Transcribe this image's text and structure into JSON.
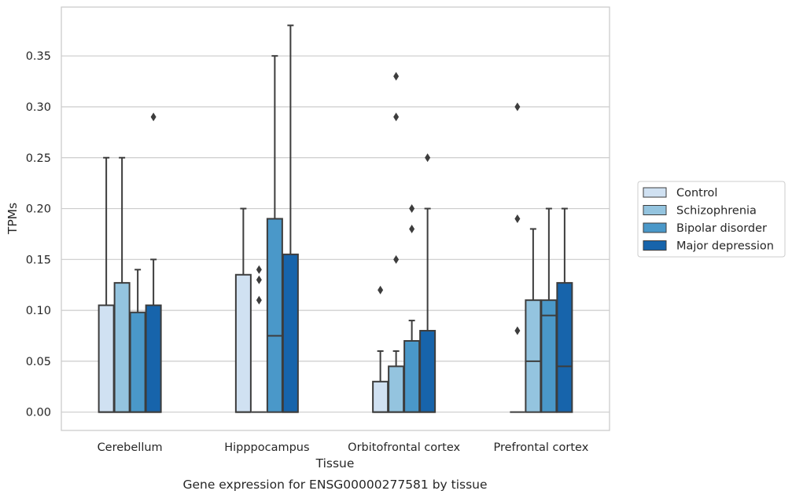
{
  "chart_data": {
    "type": "box",
    "xlabel": "Tissue",
    "ylabel": "TPMs",
    "caption": "Gene expression for ENSG00000277581 by tissue",
    "categories": [
      "Cerebellum",
      "Hipppocampus",
      "Orbitofrontal cortex",
      "Prefrontal cortex"
    ],
    "ylim": [
      -0.018,
      0.398
    ],
    "yticks": [
      "0.00",
      "0.05",
      "0.10",
      "0.15",
      "0.20",
      "0.25",
      "0.30",
      "0.35"
    ],
    "grid": true,
    "legend_position": "right",
    "series": [
      {
        "name": "Control",
        "color": "#d0e1f2",
        "boxes": [
          {
            "min": 0,
            "q1": 0,
            "median": 0,
            "q3": 0.105,
            "max": 0.25,
            "outliers": []
          },
          {
            "min": 0,
            "q1": 0,
            "median": 0,
            "q3": 0.135,
            "max": 0.2,
            "outliers": []
          },
          {
            "min": 0,
            "q1": 0,
            "median": 0,
            "q3": 0.03,
            "max": 0.06,
            "outliers": [
              0.12
            ]
          },
          {
            "min": 0,
            "q1": 0,
            "median": 0,
            "q3": 0,
            "max": 0,
            "outliers": [
              0.08,
              0.19,
              0.3
            ]
          }
        ]
      },
      {
        "name": "Schizophrenia",
        "color": "#94c4df",
        "boxes": [
          {
            "min": 0,
            "q1": 0,
            "median": 0,
            "q3": 0.127,
            "max": 0.25,
            "outliers": []
          },
          {
            "min": 0,
            "q1": 0,
            "median": 0,
            "q3": 0,
            "max": 0,
            "outliers": [
              0.11,
              0.13,
              0.14
            ]
          },
          {
            "min": 0,
            "q1": 0,
            "median": 0,
            "q3": 0.045,
            "max": 0.06,
            "outliers": [
              0.15,
              0.29,
              0.33
            ]
          },
          {
            "min": 0,
            "q1": 0,
            "median": 0.05,
            "q3": 0.11,
            "max": 0.18,
            "outliers": []
          }
        ]
      },
      {
        "name": "Bipolar disorder",
        "color": "#4a98c9",
        "boxes": [
          {
            "min": 0,
            "q1": 0,
            "median": 0,
            "q3": 0.098,
            "max": 0.14,
            "outliers": []
          },
          {
            "min": 0,
            "q1": 0,
            "median": 0.075,
            "q3": 0.19,
            "max": 0.35,
            "outliers": []
          },
          {
            "min": 0,
            "q1": 0,
            "median": 0,
            "q3": 0.07,
            "max": 0.09,
            "outliers": [
              0.18,
              0.2
            ]
          },
          {
            "min": 0,
            "q1": 0,
            "median": 0.095,
            "q3": 0.11,
            "max": 0.2,
            "outliers": []
          }
        ]
      },
      {
        "name": "Major depression",
        "color": "#1764ab",
        "boxes": [
          {
            "min": 0,
            "q1": 0,
            "median": 0,
            "q3": 0.105,
            "max": 0.15,
            "outliers": [
              0.29
            ]
          },
          {
            "min": 0,
            "q1": 0,
            "median": 0,
            "q3": 0.155,
            "max": 0.38,
            "outliers": []
          },
          {
            "min": 0,
            "q1": 0,
            "median": 0,
            "q3": 0.08,
            "max": 0.2,
            "outliers": [
              0.25
            ]
          },
          {
            "min": 0,
            "q1": 0,
            "median": 0.045,
            "q3": 0.127,
            "max": 0.2,
            "outliers": []
          }
        ]
      }
    ]
  }
}
